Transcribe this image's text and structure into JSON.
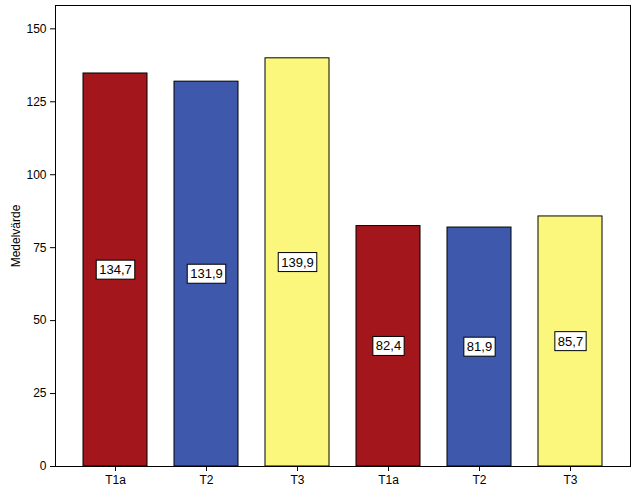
{
  "chart_data": {
    "type": "bar",
    "categories": [
      "T1a",
      "T2",
      "T3",
      "T1a",
      "T2",
      "T3"
    ],
    "values": [
      134.7,
      131.9,
      139.9,
      82.4,
      81.9,
      85.7
    ],
    "value_labels": [
      "134,7",
      "131,9",
      "139,9",
      "82,4",
      "81,9",
      "85,7"
    ],
    "colors": [
      "#a3161b",
      "#3e58ac",
      "#fbf77d",
      "#a3161b",
      "#3e58ac",
      "#fbf77d"
    ],
    "ylabel": "Medelvärde",
    "ylim": [
      0,
      158
    ],
    "yticks": [
      0,
      25,
      50,
      75,
      100,
      125,
      150
    ],
    "data_labels": true,
    "grid": false
  }
}
